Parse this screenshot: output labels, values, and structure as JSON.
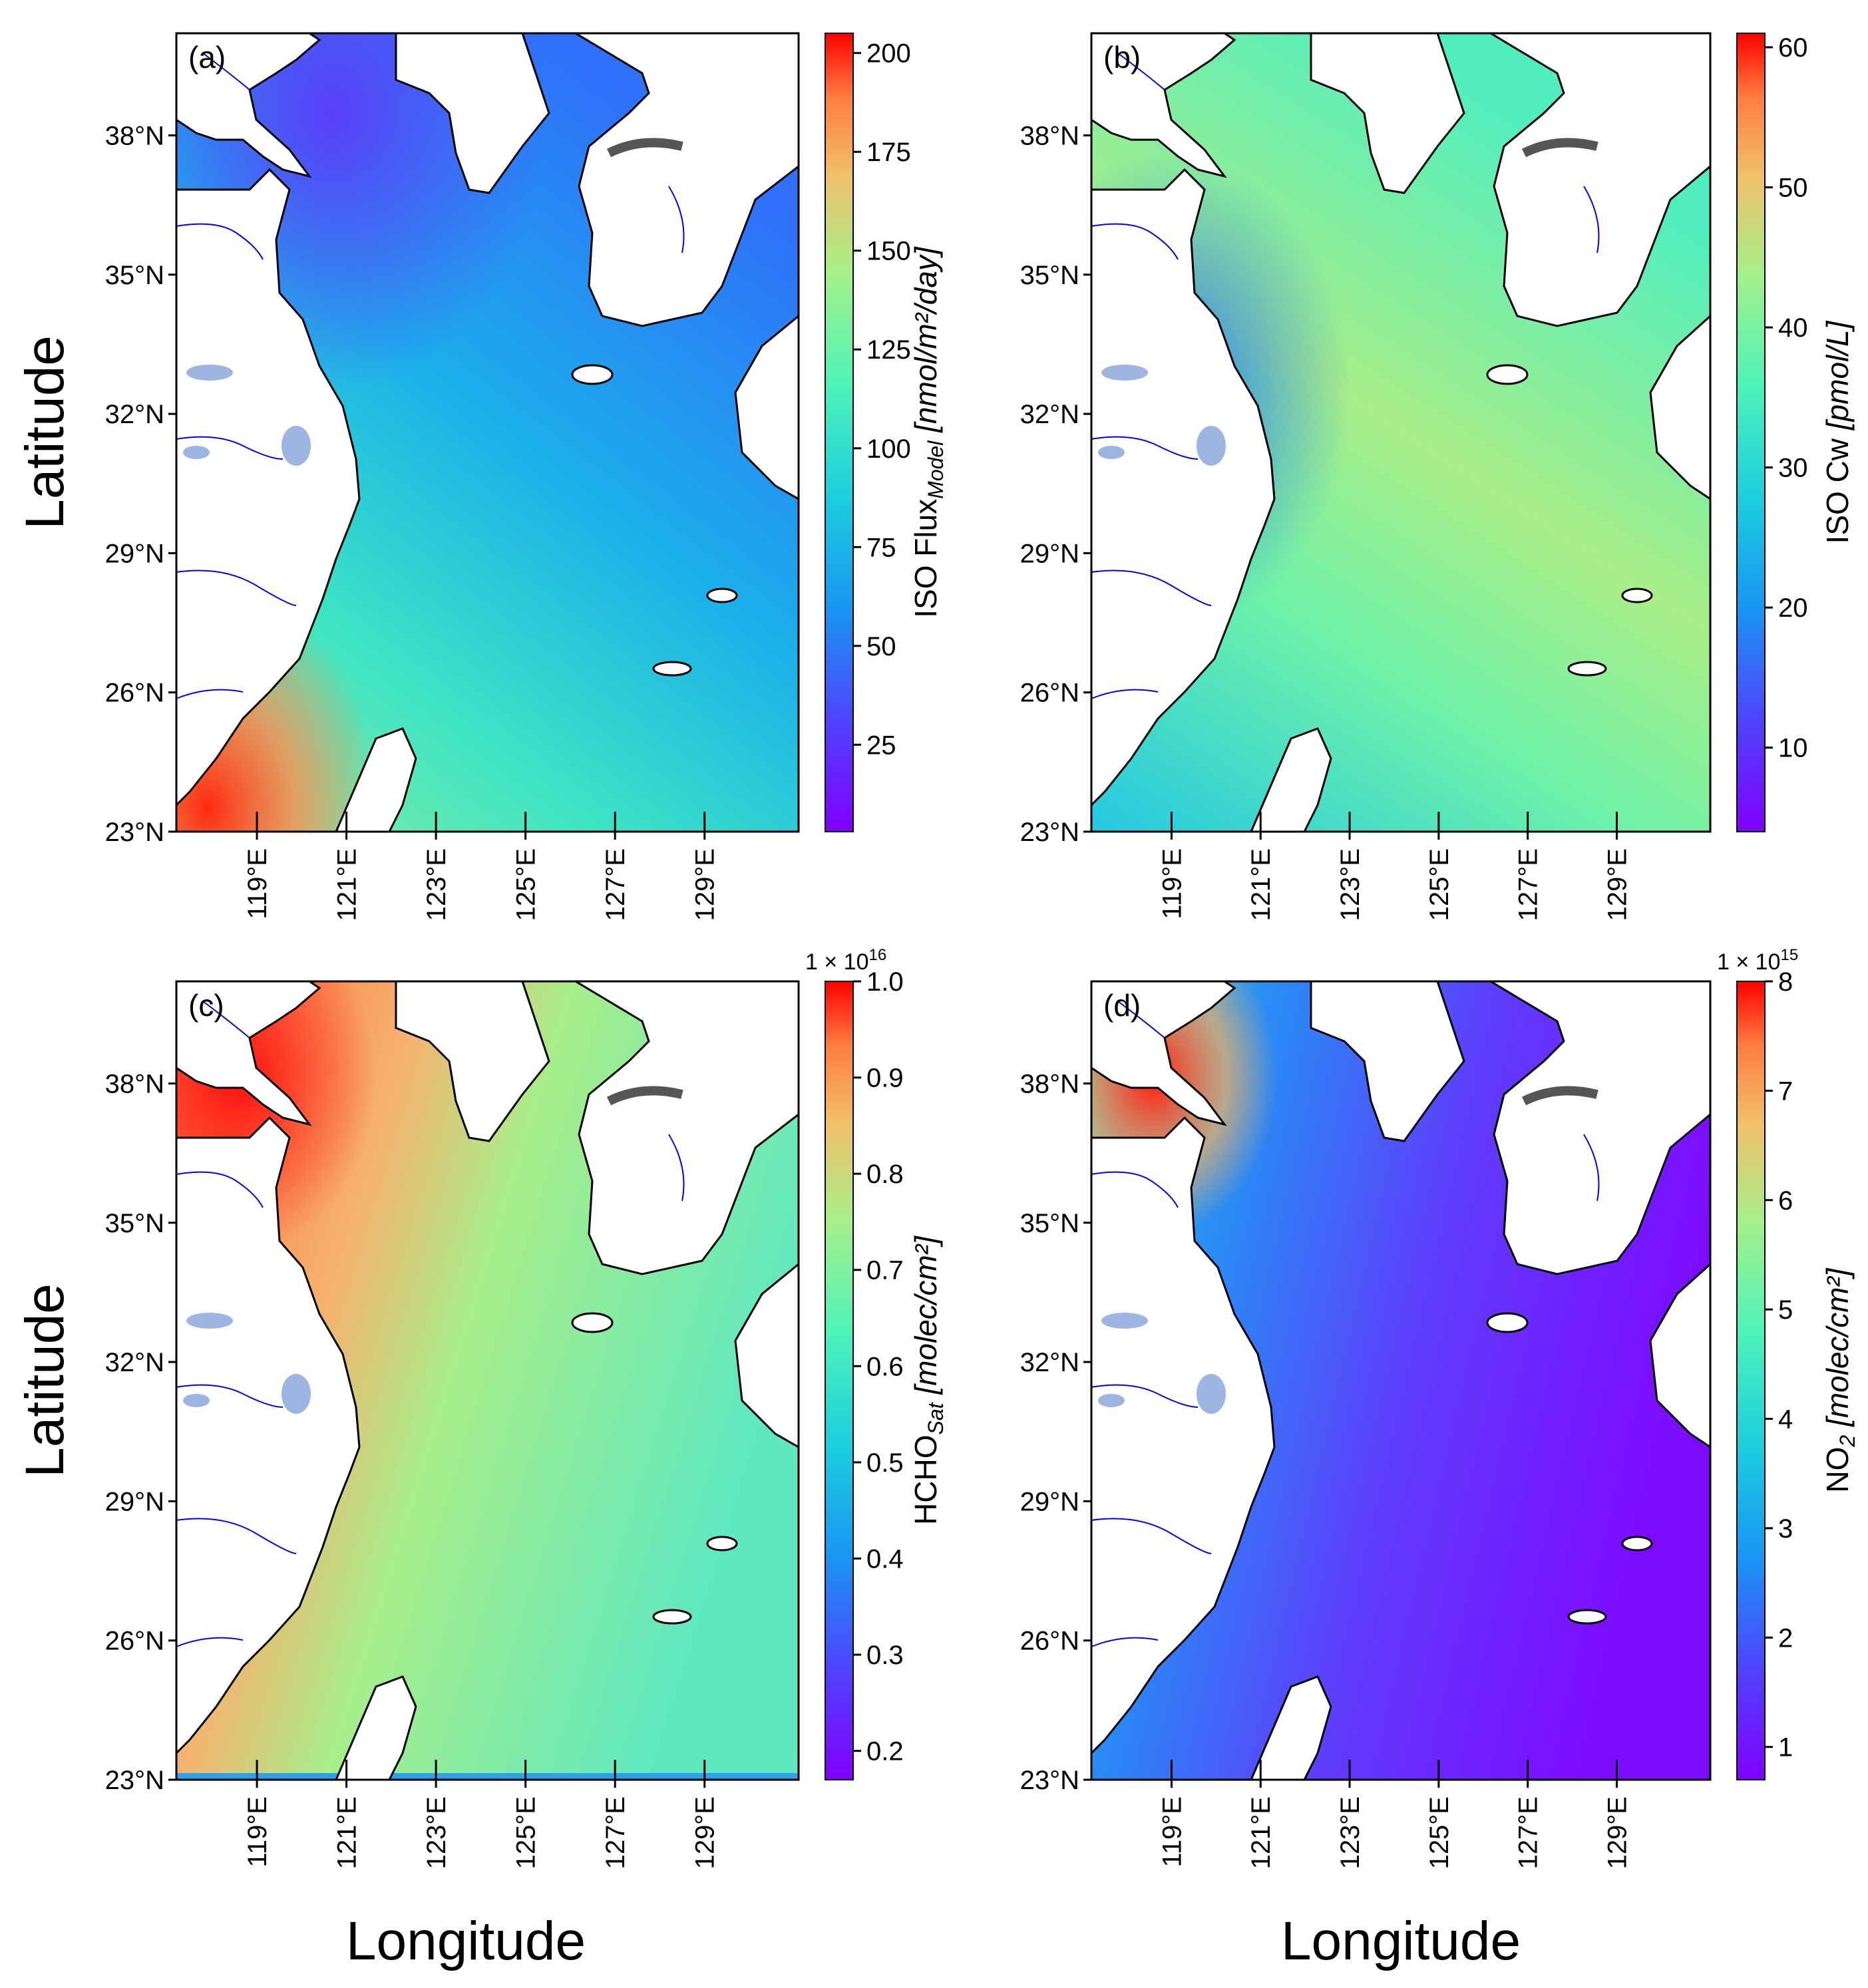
{
  "axes": {
    "ylabel": "Latitude",
    "xlabel": "Longitude",
    "lat_ticks": [
      "23°N",
      "26°N",
      "29°N",
      "32°N",
      "35°N",
      "38°N"
    ],
    "lon_ticks": [
      "119°E",
      "121°E",
      "123°E",
      "125°E",
      "127°E",
      "129°E"
    ]
  },
  "colors": {
    "land": "#ffffff",
    "coastline": "#000000",
    "rivers": "#0000ff",
    "lakes": "#9db5e0",
    "colormap": "rainbow"
  },
  "panels": [
    {
      "letter": "(a)",
      "variable": "ISO Flux",
      "subscript": "Model",
      "unit": "[nmol/m²/day]",
      "multiplier_base": "",
      "multiplier_exp": "",
      "cbar_ticks": [
        "25",
        "50",
        "75",
        "100",
        "125",
        "150",
        "175",
        "200"
      ],
      "cbar_range": [
        3,
        205
      ]
    },
    {
      "letter": "(b)",
      "variable": "ISO Cw",
      "subscript": "",
      "unit": "[pmol/L]",
      "multiplier_base": "",
      "multiplier_exp": "",
      "cbar_ticks": [
        "10",
        "20",
        "30",
        "40",
        "50",
        "60"
      ],
      "cbar_range": [
        4,
        61
      ]
    },
    {
      "letter": "(c)",
      "variable": "HCHO",
      "subscript": "Sat",
      "unit": "[molec/cm²]",
      "multiplier_base": "1 × 10",
      "multiplier_exp": "16",
      "cbar_ticks": [
        "0.2",
        "0.3",
        "0.4",
        "0.5",
        "0.6",
        "0.7",
        "0.8",
        "0.9",
        "1.0"
      ],
      "cbar_range": [
        0.17,
        1.0
      ]
    },
    {
      "letter": "(d)",
      "variable": "NO",
      "subscript": "2",
      "unit": "[molec/cm²]",
      "multiplier_base": "1 × 10",
      "multiplier_exp": "15",
      "cbar_ticks": [
        "1",
        "2",
        "3",
        "4",
        "5",
        "6",
        "7",
        "8"
      ],
      "cbar_range": [
        0.7,
        8.0
      ]
    }
  ]
}
